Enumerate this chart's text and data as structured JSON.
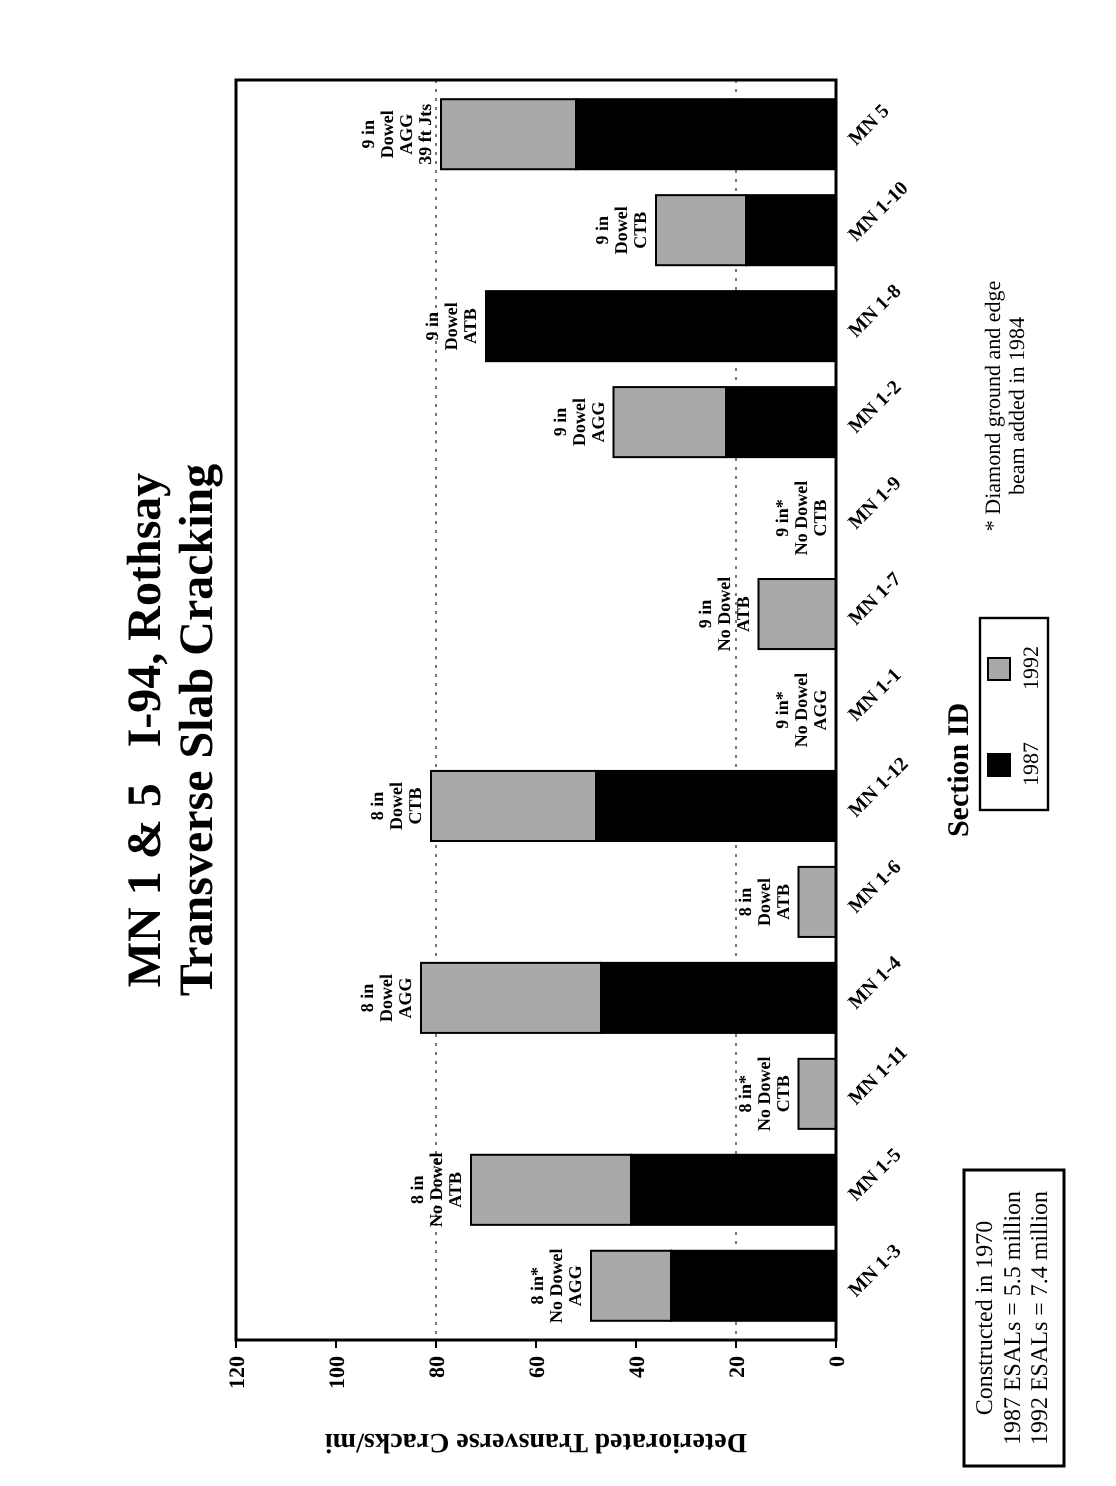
{
  "chart_data": {
    "type": "bar",
    "orientation": "horizontal",
    "title": "MN 1 & 5   I-94, Rothsay",
    "subtitle": "Transverse Slab Cracking",
    "xlabel": "Deteriorated Transverse Cracks/mi",
    "ylabel": "Section ID",
    "categories": [
      "MN 5",
      "MN 1-10",
      "MN 1-8",
      "MN 1-2",
      "MN 1-9",
      "MN 1-7",
      "MN 1-1",
      "MN 1-12",
      "MN 1-6",
      "MN 1-4",
      "MN 1-11",
      "MN 1-5",
      "MN 1-3"
    ],
    "stacked": true,
    "series": [
      {
        "name": "1987",
        "color": "#000000",
        "values": [
          52,
          18,
          70,
          22,
          0,
          0,
          0,
          48,
          0,
          47,
          0,
          41,
          33
        ]
      },
      {
        "name": "1992",
        "color": "#a9a9a9",
        "values": [
          27,
          18,
          0,
          22.5,
          0,
          15.5,
          0,
          33,
          7.5,
          36,
          7.5,
          32,
          16
        ]
      }
    ],
    "xlim": [
      120,
      0
    ],
    "xticks": [
      120,
      100,
      80,
      60,
      40,
      20,
      0
    ],
    "grid": false,
    "legend": "right",
    "ref_lines": [
      {
        "axis": "x",
        "value": 20,
        "line_style": "dotted",
        "color": "#777777"
      },
      {
        "axis": "x",
        "value": 80,
        "line_style": "dotted",
        "color": "#777777"
      }
    ],
    "annotations": [
      {
        "text": "9 in\nDowel\nAGG\n39 ft Jts",
        "y": "MN 5",
        "x": 79
      },
      {
        "text": "9 in\nDowel\nCTB",
        "y": "MN 1-10",
        "x": 36
      },
      {
        "text": "9 in\nDowel\nATB",
        "y": "MN 1-8",
        "x": 70
      },
      {
        "text": "9 in\nDowel\nAGG",
        "y": "MN 1-2",
        "x": 44.5
      },
      {
        "text": "9 in*\nNo Dowel\nCTB",
        "y": "MN 1-9",
        "x": 0
      },
      {
        "text": "9 in\nNo Dowel\nATB",
        "y": "MN 1-7",
        "x": 15.5
      },
      {
        "text": "9 in*\nNo Dowel\nAGG",
        "y": "MN 1-1",
        "x": 0
      },
      {
        "text": "8 in\nDowel\nCTB",
        "y": "MN 1-12",
        "x": 81
      },
      {
        "text": "8 in\nDowel\nATB",
        "y": "MN 1-6",
        "x": 7.5
      },
      {
        "text": "8 in\nDowel\nAGG",
        "y": "MN 1-4",
        "x": 83
      },
      {
        "text": "8 in*\nNo Dowel\nCTB",
        "y": "MN 1-11",
        "x": 7.5
      },
      {
        "text": "8 in\nNo Dowel\nATB",
        "y": "MN 1-5",
        "x": 73
      },
      {
        "text": "8 in*\nNo Dowel\nAGG",
        "y": "MN 1-3",
        "x": 49
      },
      "Constructed in 1970\n1987 ESALs = 5.5 million\n1992 ESALs = 7.4 million",
      "* Diamond ground and edge\nbeam added in 1984"
    ]
  }
}
